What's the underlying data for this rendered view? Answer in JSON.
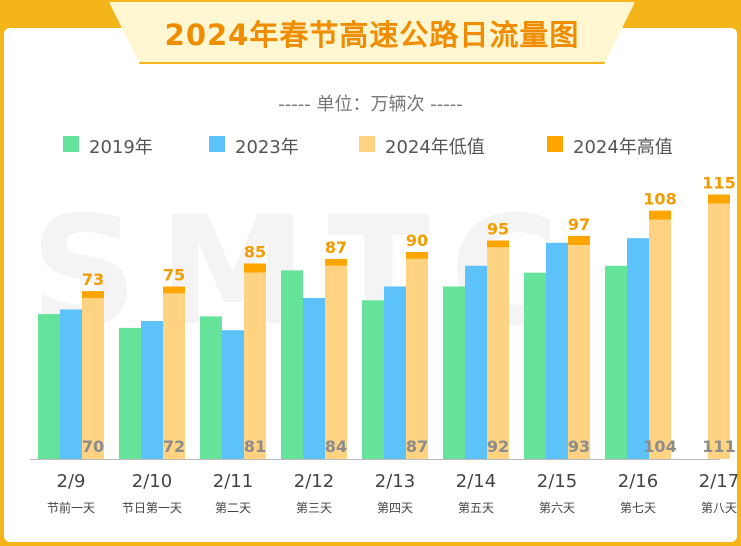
{
  "title": "2024年春节高速公路日流量图",
  "unit_label": "----- 单位：万辆次 -----",
  "watermark": "SMTC",
  "colors": {
    "s2019": "#66e39a",
    "s2023": "#5ec2fa",
    "s2024_low": "#ffd382",
    "s2024_high": "#ffa500",
    "value_top": "#f19c00",
    "value_inner": "#8c8c8c"
  },
  "chart_data": {
    "type": "bar",
    "title": "2024年春节高速公路日流量图",
    "ylabel": "万辆次",
    "ylim": [
      0,
      120
    ],
    "categories": [
      "2/9",
      "2/10",
      "2/11",
      "2/12",
      "2/13",
      "2/14",
      "2/15",
      "2/16",
      "2/17"
    ],
    "sublabels": [
      "节前一天",
      "节日第一天",
      "第二天",
      "第三天",
      "第四天",
      "第五天",
      "第六天",
      "第七天",
      "第八天"
    ],
    "series": [
      {
        "name": "2019年",
        "values": [
          63,
          57,
          62,
          82,
          69,
          75,
          81,
          84,
          null
        ]
      },
      {
        "name": "2023年",
        "values": [
          65,
          60,
          56,
          70,
          75,
          84,
          94,
          96,
          null
        ]
      },
      {
        "name": "2024年低值",
        "values": [
          70,
          72,
          81,
          84,
          87,
          92,
          93,
          104,
          111
        ]
      },
      {
        "name": "2024年高值",
        "values": [
          73,
          75,
          85,
          87,
          90,
          95,
          97,
          108,
          115
        ]
      }
    ]
  }
}
